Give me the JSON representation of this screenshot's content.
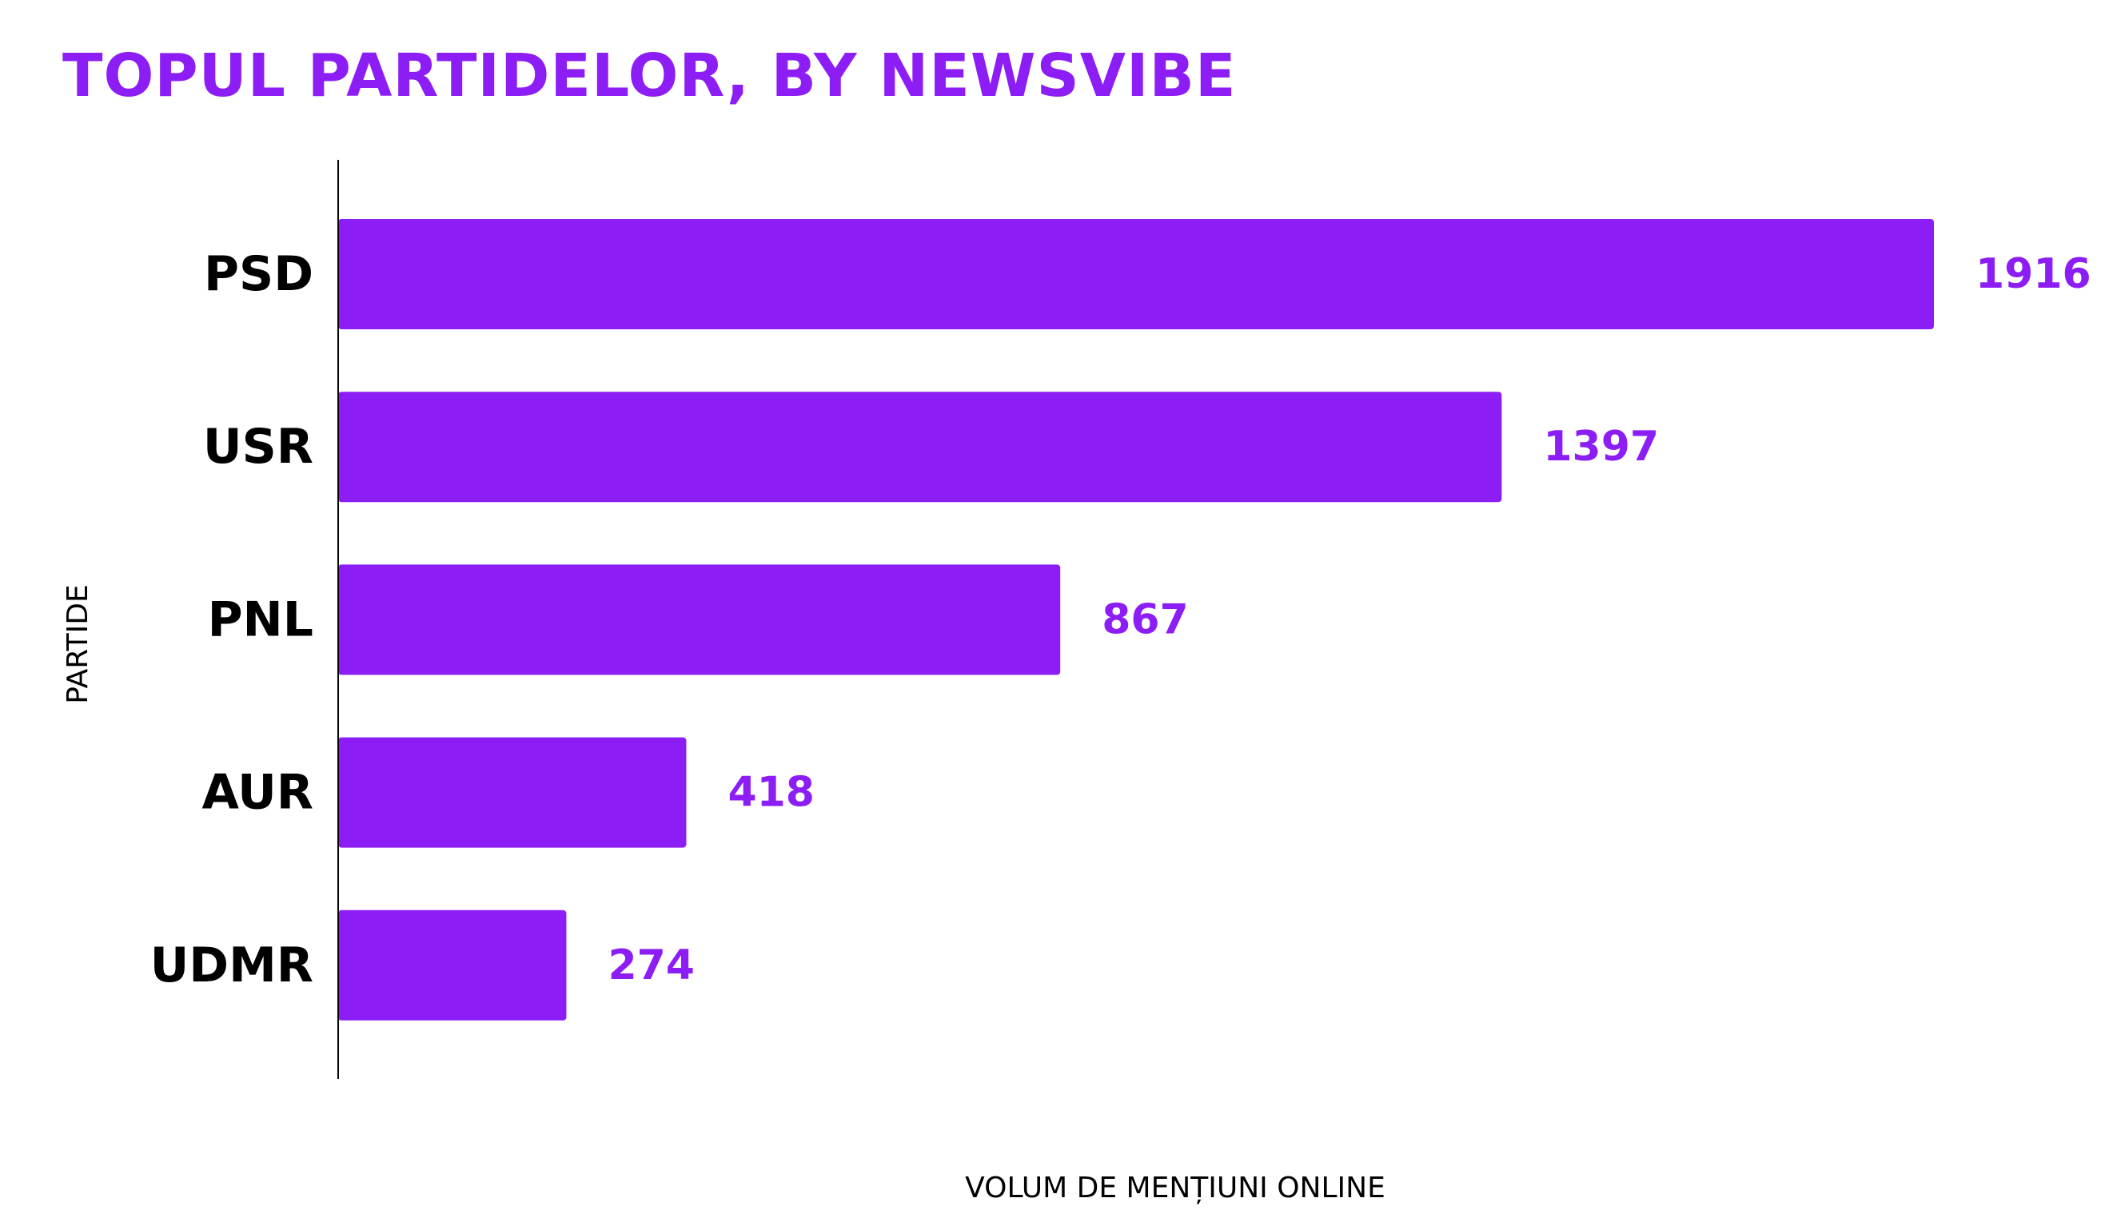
{
  "chart_data": {
    "type": "bar",
    "orientation": "horizontal",
    "title": "TOPUL PARTIDELOR, BY NEWSVIBE",
    "xlabel": "VOLUM DE MENȚIUNI ONLINE",
    "ylabel": "PARTIDE",
    "categories": [
      "PSD",
      "USR",
      "PNL",
      "AUR",
      "UDMR"
    ],
    "values": [
      1916,
      1397,
      867,
      418,
      274
    ],
    "data_labels": [
      "1916",
      "1397",
      "867",
      "418",
      "274"
    ],
    "xlim": [
      0,
      1916
    ],
    "grid": false,
    "legend": "none",
    "colors": {
      "bar": "#8c1ef5",
      "title": "#8c1ef5",
      "value_label": "#8c1ef5",
      "axis": "#000000"
    }
  }
}
